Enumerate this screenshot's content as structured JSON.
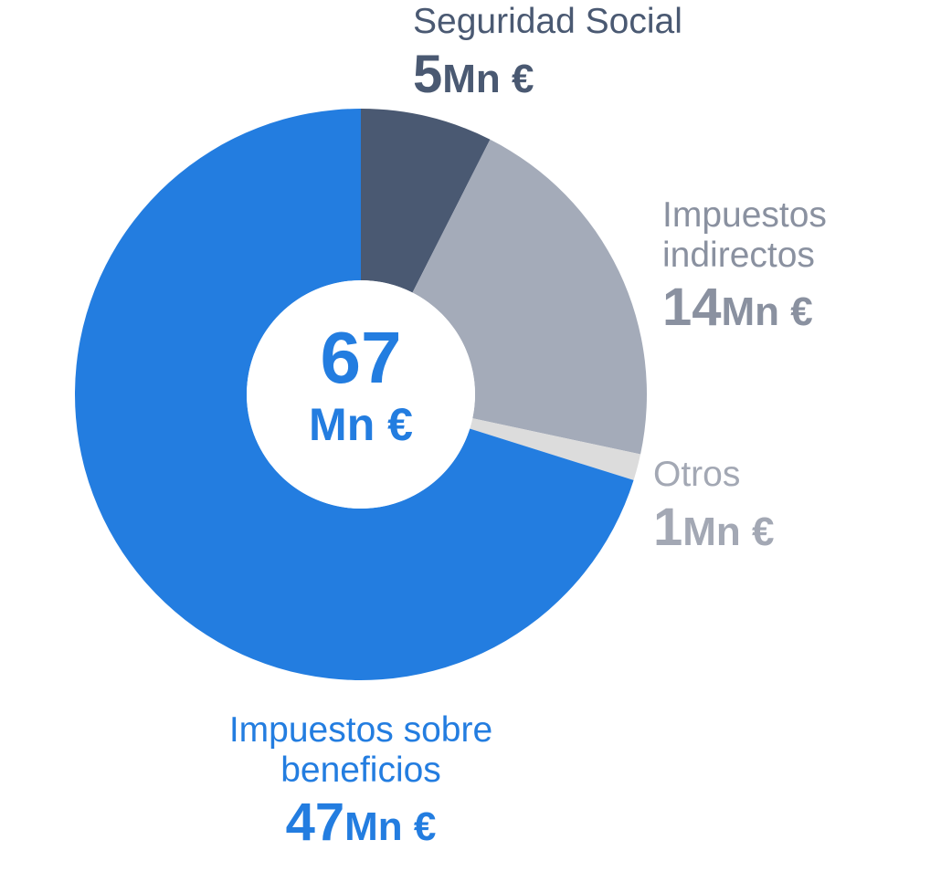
{
  "chart_data": {
    "type": "pie",
    "variant": "donut",
    "total": {
      "value": "67",
      "unit": "Mn €"
    },
    "slices": [
      {
        "key": "ss",
        "label": "Seguridad Social",
        "value": 5,
        "value_text": "5",
        "unit": "Mn €",
        "color": "#4a5972",
        "label_color": "#4a5972"
      },
      {
        "key": "ind",
        "label": "Impuestos indirectos",
        "label_lines": [
          "Impuestos",
          "indirectos"
        ],
        "value": 14,
        "value_text": "14",
        "unit": "Mn €",
        "color": "#a4abb9",
        "label_color": "#8a91a0"
      },
      {
        "key": "otros",
        "label": "Otros",
        "value": 1,
        "value_text": "1",
        "unit": "Mn €",
        "color": "#dcdcdc",
        "label_color": "#a3a8b4"
      },
      {
        "key": "ben",
        "label": "Impuestos sobre beneficios",
        "label_lines": [
          "Impuestos sobre",
          "beneficios"
        ],
        "value": 47,
        "value_text": "47",
        "unit": "Mn €",
        "color": "#237de0",
        "label_color": "#237de0"
      }
    ],
    "start": "top",
    "direction": "clockwise"
  },
  "colors": {
    "background": "#ffffff",
    "center_text": "#237de0"
  }
}
